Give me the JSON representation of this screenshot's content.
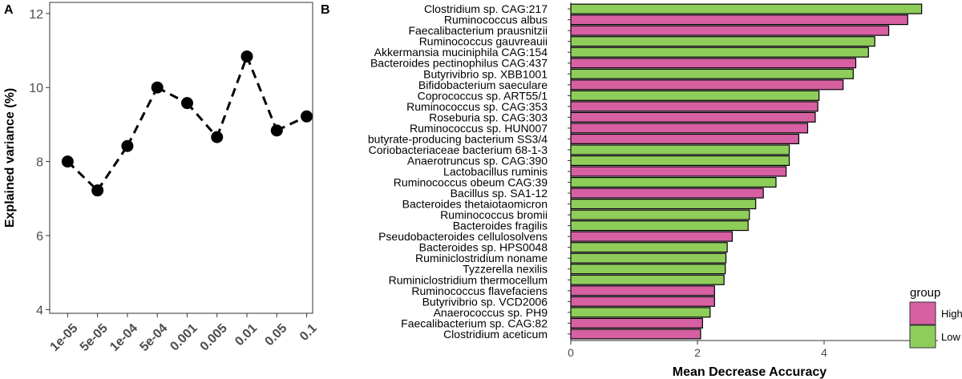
{
  "colors": {
    "high": "#d660a1",
    "low": "#8fcd5b",
    "panel_border": "#333333",
    "line": "#000000"
  },
  "panel_a": {
    "label": "A"
  },
  "panel_b": {
    "label": "B"
  },
  "chart_data": [
    {
      "type": "line",
      "panel": "A",
      "title": "",
      "xlabel": "",
      "ylabel": "Explained variance (%)",
      "categories": [
        "1e-05",
        "5e-05",
        "1e-04",
        "5e-04",
        "0.001",
        "0.005",
        "0.01",
        "0.05",
        "0.1"
      ],
      "values": [
        8.0,
        7.22,
        8.42,
        10.0,
        9.58,
        8.66,
        10.84,
        8.84,
        9.22
      ],
      "ylim": [
        3.9,
        12.3
      ],
      "yticks": [
        4,
        6,
        8,
        10,
        12
      ],
      "line_style": "dashed",
      "marker": "circle",
      "grid": false
    },
    {
      "type": "bar",
      "panel": "B",
      "orientation": "horizontal",
      "title": "",
      "xlabel": "Mean Decrease Accuracy",
      "ylabel": "",
      "xlim": [
        0,
        5.7
      ],
      "xticks": [
        0,
        2,
        4
      ],
      "legend": {
        "title": "group",
        "position": "right-bottom",
        "entries": [
          "High",
          "Low"
        ]
      },
      "categories": [
        "Clostridium sp. CAG:217",
        "Ruminococcus albus",
        "Faecalibacterium prausnitzii",
        "Ruminococcus gauvreauii",
        "Akkermansia muciniphila CAG:154",
        "Bacteroides pectinophilus CAG:437",
        "Butyrivibrio sp. XBB1001",
        "Bifidobacterium saeculare",
        "Coprococcus sp. ART55/1",
        "Ruminococcus sp. CAG:353",
        "Roseburia sp. CAG:303",
        "Ruminococcus sp. HUN007",
        "butyrate-producing bacterium SS3/4",
        "Coriobacteriaceae bacterium 68-1-3",
        "Anaerotruncus sp. CAG:390",
        "Lactobacillus ruminis",
        "Ruminococcus obeum CAG:39",
        "Bacillus sp. SA1-12",
        "Bacteroides thetaiotaomicron",
        "Ruminococcus bromii",
        "Bacteroides fragilis",
        "Pseudobacteroides cellulosolvens",
        "Bacteroides sp. HPS0048",
        "Ruminiclostridium noname",
        "Tyzzerella nexilis",
        "Ruminiclostridium thermocellum",
        "Ruminococcus flavefaciens",
        "Butyrivibrio sp. VCD2006",
        "Anaerococcus sp. PH9",
        "Faecalibacterium sp. CAG:82",
        "Clostridium aceticum"
      ],
      "values": [
        5.54,
        5.32,
        5.02,
        4.8,
        4.7,
        4.5,
        4.46,
        4.3,
        3.92,
        3.9,
        3.86,
        3.74,
        3.6,
        3.45,
        3.45,
        3.4,
        3.24,
        3.04,
        2.92,
        2.82,
        2.8,
        2.55,
        2.47,
        2.45,
        2.44,
        2.42,
        2.27,
        2.27,
        2.2,
        2.08,
        2.05
      ],
      "groups": [
        "Low",
        "High",
        "High",
        "Low",
        "Low",
        "High",
        "Low",
        "High",
        "Low",
        "High",
        "High",
        "High",
        "High",
        "Low",
        "Low",
        "High",
        "Low",
        "High",
        "Low",
        "Low",
        "Low",
        "High",
        "Low",
        "Low",
        "Low",
        "Low",
        "High",
        "High",
        "Low",
        "High",
        "High"
      ]
    }
  ]
}
